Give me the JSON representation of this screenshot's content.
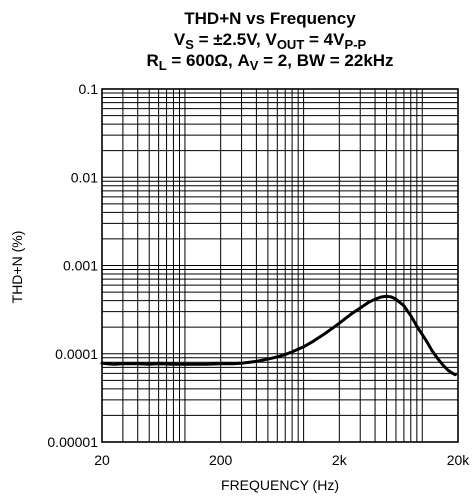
{
  "chart_data": {
    "type": "line",
    "title": "THD+N vs Frequency",
    "subtitle_lines": [
      {
        "parts": [
          {
            "t": "V",
            "s": ""
          },
          {
            "t": "S",
            "s": "sub"
          },
          {
            "t": " = ±2.5V, V",
            "s": ""
          },
          {
            "t": "OUT",
            "s": "sub"
          },
          {
            "t": " = 4V",
            "s": ""
          },
          {
            "t": "P-P",
            "s": "sub"
          }
        ]
      },
      {
        "parts": [
          {
            "t": "R",
            "s": ""
          },
          {
            "t": "L",
            "s": "sub"
          },
          {
            "t": " = 600Ω, A",
            "s": ""
          },
          {
            "t": "V",
            "s": "sub"
          },
          {
            "t": " = 2, BW = 22kHz",
            "s": ""
          }
        ]
      }
    ],
    "xlabel": "FREQUENCY (Hz)",
    "ylabel": "THD+N (%)",
    "x_scale": "log",
    "y_scale": "log",
    "xlim": [
      20,
      20000
    ],
    "ylim": [
      1e-05,
      0.1
    ],
    "x_ticks": [
      {
        "value": 20,
        "label": "20"
      },
      {
        "value": 200,
        "label": "200"
      },
      {
        "value": 2000,
        "label": "2k"
      },
      {
        "value": 20000,
        "label": "20k"
      }
    ],
    "y_ticks": [
      {
        "value": 0.1,
        "label": "0.1"
      },
      {
        "value": 0.01,
        "label": "0.01"
      },
      {
        "value": 0.001,
        "label": "0.001"
      },
      {
        "value": 0.0001,
        "label": "0.0001"
      },
      {
        "value": 1e-05,
        "label": "0.00001"
      }
    ],
    "grid": true,
    "series": [
      {
        "color": "#000000",
        "points": [
          [
            20,
            7.8e-05
          ],
          [
            25,
            7.6e-05
          ],
          [
            30,
            7.7e-05
          ],
          [
            40,
            7.7e-05
          ],
          [
            50,
            7.6e-05
          ],
          [
            60,
            7.7e-05
          ],
          [
            80,
            7.6e-05
          ],
          [
            100,
            7.6e-05
          ],
          [
            150,
            7.6e-05
          ],
          [
            200,
            7.7e-05
          ],
          [
            250,
            7.7e-05
          ],
          [
            300,
            7.8e-05
          ],
          [
            350,
            8e-05
          ],
          [
            400,
            8.2e-05
          ],
          [
            500,
            8.7e-05
          ],
          [
            600,
            9.2e-05
          ],
          [
            700,
            9.8e-05
          ],
          [
            800,
            0.000105
          ],
          [
            1000,
            0.00012
          ],
          [
            1200,
            0.000138
          ],
          [
            1500,
            0.000168
          ],
          [
            1800,
            0.0002
          ],
          [
            2000,
            0.000222
          ],
          [
            2500,
            0.00028
          ],
          [
            3000,
            0.00033
          ],
          [
            3500,
            0.00038
          ],
          [
            4000,
            0.000415
          ],
          [
            4500,
            0.00044
          ],
          [
            5000,
            0.000448
          ],
          [
            5500,
            0.00044
          ],
          [
            6000,
            0.000415
          ],
          [
            7000,
            0.00035
          ],
          [
            8000,
            0.00027
          ],
          [
            9000,
            0.000205
          ],
          [
            10000,
            0.000165
          ],
          [
            11000,
            0.000135
          ],
          [
            12000,
            0.00011
          ],
          [
            13500,
            8.8e-05
          ],
          [
            15000,
            7.4e-05
          ],
          [
            16500,
            6.5e-05
          ],
          [
            18000,
            6e-05
          ],
          [
            19000,
            5.8e-05
          ]
        ]
      }
    ]
  }
}
